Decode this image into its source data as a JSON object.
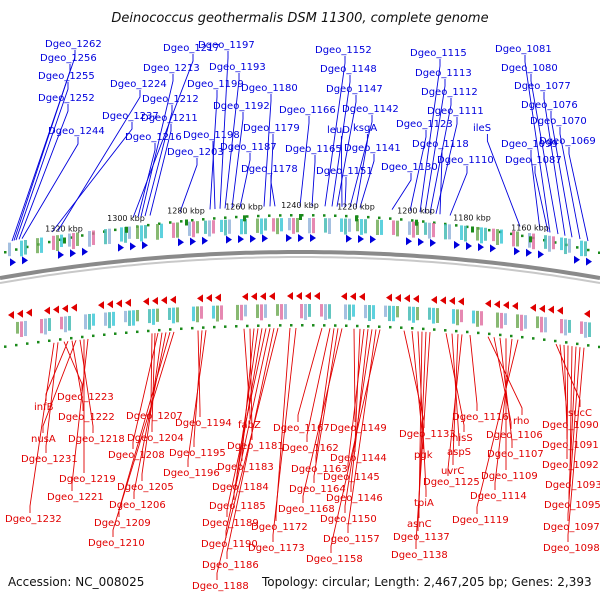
{
  "title": "Deinococcus geothermalis DSM 11300, complete genome",
  "accession": "Accession: NC_008025",
  "topology": "Topology: circular; Length: 2,467,205 bp; Genes: 2,393",
  "colors": {
    "forward": "#0000dd",
    "reverse": "#e00000",
    "backbone": "#8a8a8a",
    "tick": "#1a8a1a"
  },
  "kbp_ticks": [
    "1320 kbp",
    "1300 kbp",
    "1280 kbp",
    "1260 kbp",
    "1240 kbp",
    "1220 kbp",
    "1200 kbp",
    "1180 kbp",
    "1160 kbp"
  ],
  "forward_genes": [
    "Dgeo_1262",
    "Dgeo_1256",
    "Dgeo_1255",
    "Dgeo_1252",
    "Dgeo_1244",
    "Dgeo_1237",
    "Dgeo_1224",
    "Dgeo_1217",
    "Dgeo_1216",
    "Dgeo_1213",
    "Dgeo_1212",
    "Dgeo_1211",
    "Dgeo_1203",
    "Dgeo_1199",
    "Dgeo_1198",
    "Dgeo_1197",
    "Dgeo_1193",
    "Dgeo_1192",
    "Dgeo_1187",
    "Dgeo_1180",
    "Dgeo_1179",
    "Dgeo_1178",
    "Dgeo_1166",
    "Dgeo_1165",
    "Dgeo_1152",
    "Dgeo_1148",
    "Dgeo_1147",
    "leuD",
    "Dgeo_1151",
    "Dgeo_1142",
    "ksgA",
    "Dgeo_1141",
    "Dgeo_1130",
    "Dgeo_1123",
    "Dgeo_1115",
    "Dgeo_1113",
    "Dgeo_1112",
    "Dgeo_1111",
    "Dgeo_1118",
    "Dgeo_1110",
    "Dgeo_1081",
    "Dgeo_1080",
    "Dgeo_1077",
    "Dgeo_1076",
    "ileS",
    "Dgeo_1099",
    "Dgeo_1070",
    "Dgeo_1087",
    "Dgeo_1069"
  ],
  "reverse_genes": [
    "Dgeo_1223",
    "infB",
    "Dgeo_1222",
    "nusA",
    "Dgeo_1218",
    "Dgeo_1231",
    "Dgeo_1219",
    "Dgeo_1221",
    "Dgeo_1232",
    "Dgeo_1207",
    "Dgeo_1204",
    "Dgeo_1208",
    "Dgeo_1205",
    "Dgeo_1206",
    "Dgeo_1209",
    "Dgeo_1210",
    "Dgeo_1194",
    "Dgeo_1195",
    "Dgeo_1196",
    "fabZ",
    "Dgeo_1181",
    "Dgeo_1183",
    "Dgeo_1184",
    "Dgeo_1185",
    "Dgeo_1189",
    "Dgeo_1190",
    "Dgeo_1186",
    "Dgeo_1188",
    "Dgeo_1172",
    "Dgeo_1173",
    "Dgeo_1167",
    "Dgeo_1162",
    "Dgeo_1163",
    "Dgeo_1164",
    "Dgeo_1168",
    "Dgeo_1149",
    "Dgeo_1144",
    "Dgeo_1145",
    "Dgeo_1146",
    "Dgeo_1150",
    "Dgeo_1157",
    "Dgeo_1158",
    "Dgeo_1133",
    "pgk",
    "tpiA",
    "asnC",
    "Dgeo_1137",
    "Dgeo_1138",
    "hisS",
    "aspS",
    "uvrC",
    "Dgeo_1125",
    "Dgeo_1116",
    "rho",
    "Dgeo_1106",
    "Dgeo_1107",
    "Dgeo_1109",
    "Dgeo_1114",
    "Dgeo_1119",
    "sucC",
    "Dgeo_1090",
    "Dgeo_1091",
    "Dgeo_1092",
    "Dgeo_1093",
    "Dgeo_1095",
    "Dgeo_1097",
    "Dgeo_1098"
  ]
}
